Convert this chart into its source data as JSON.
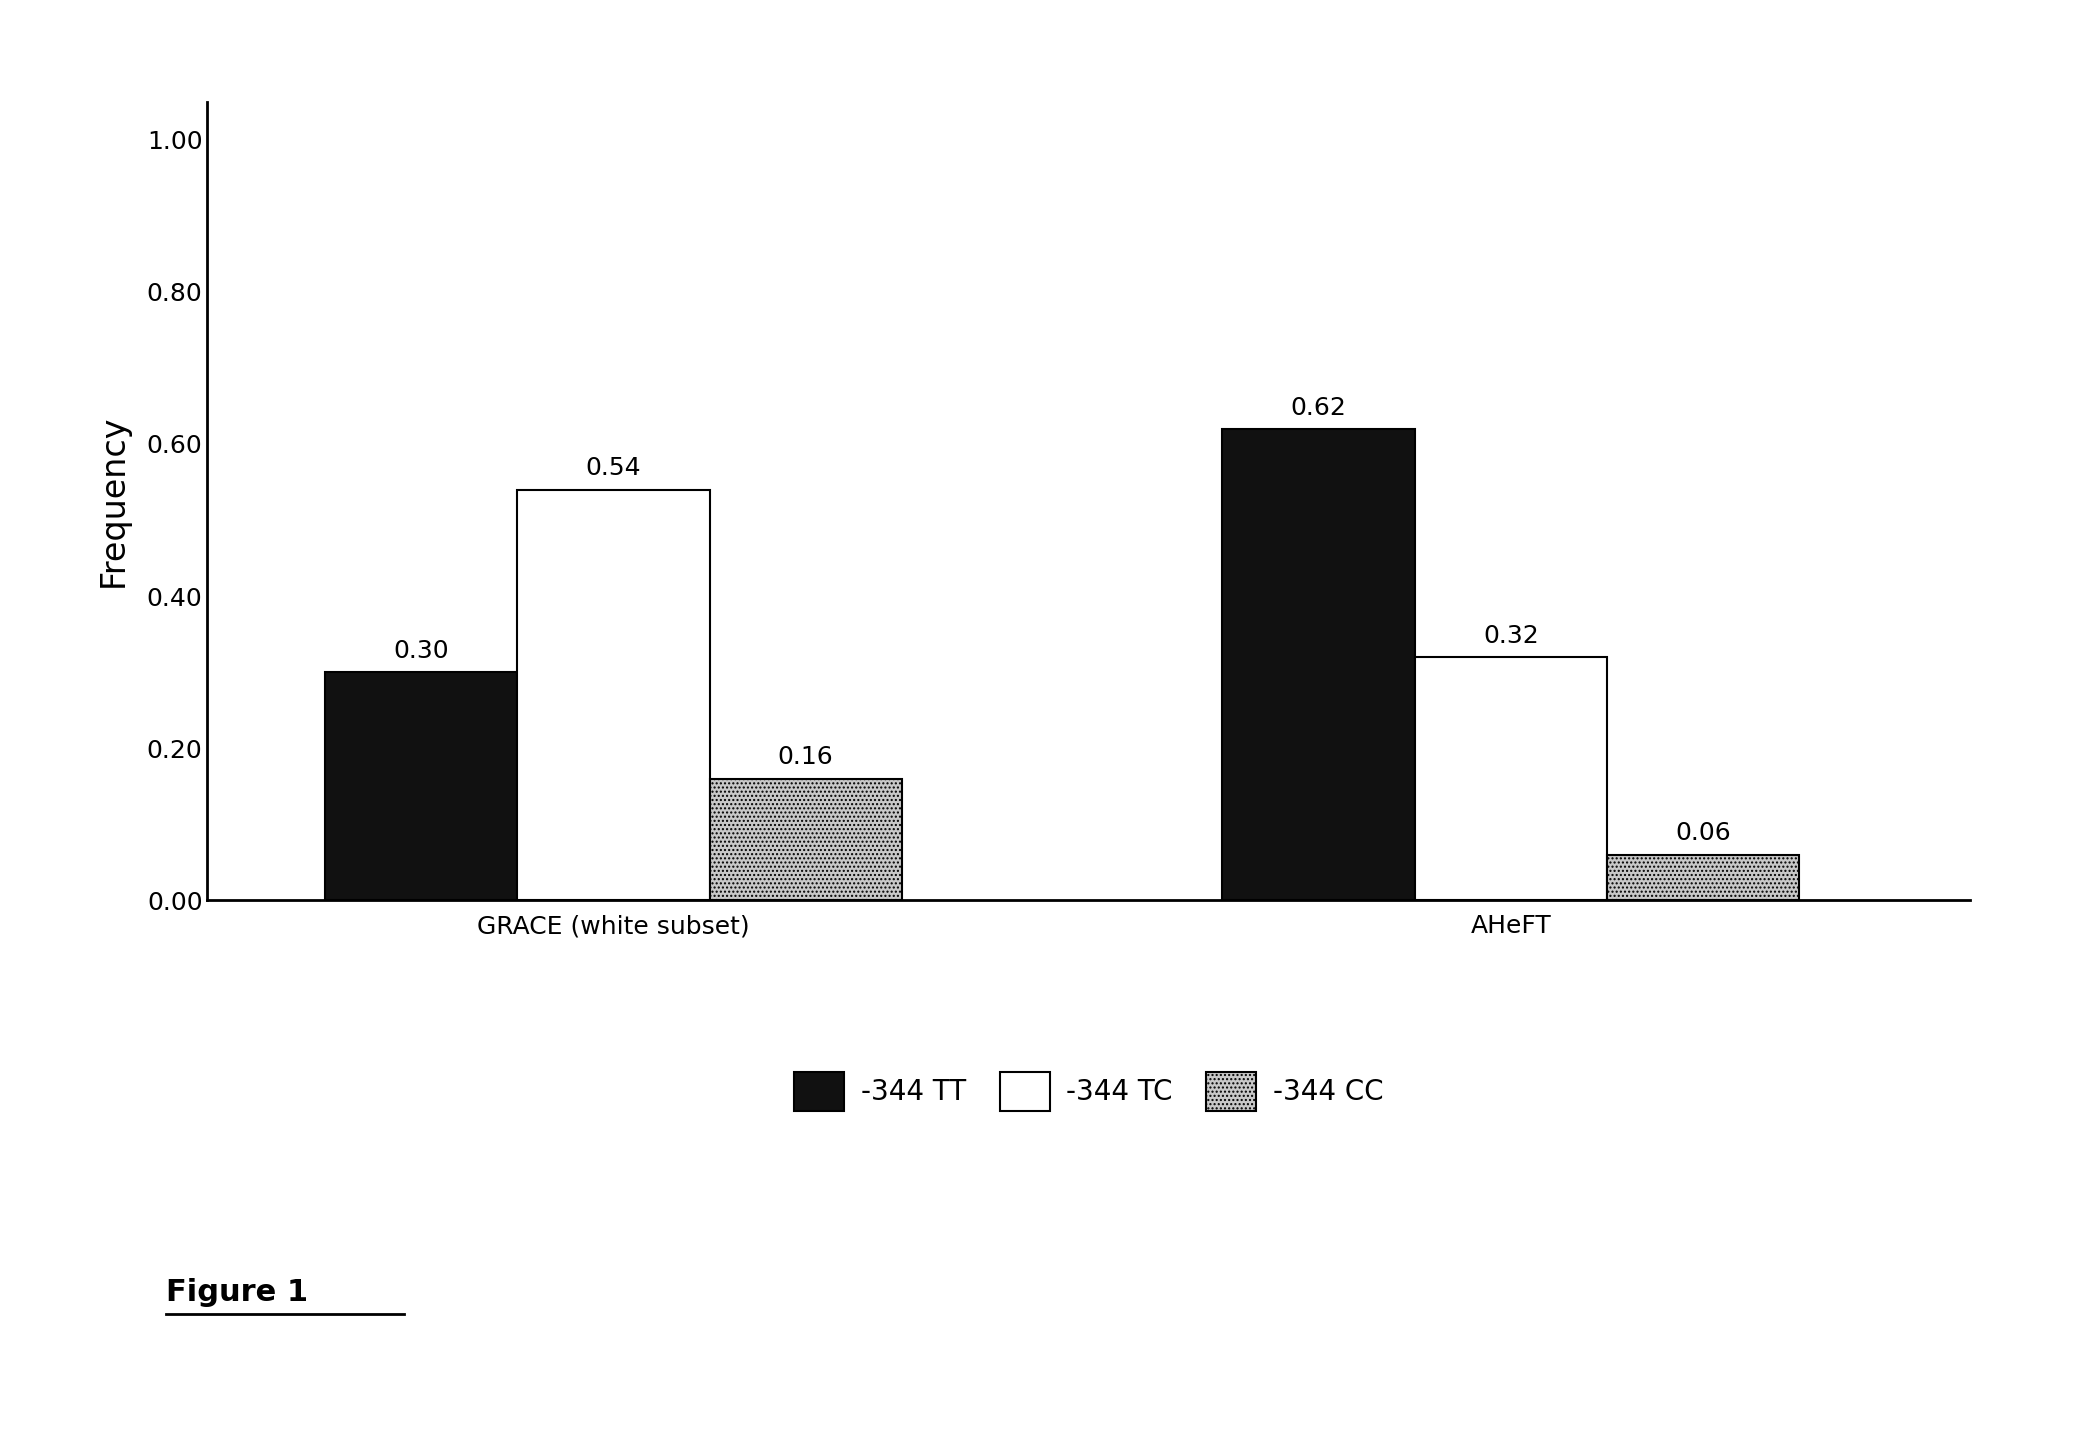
{
  "groups": [
    "GRACE (white subset)",
    "AHeFT"
  ],
  "series": [
    "-344 TT",
    "-344 TC",
    "-344 CC"
  ],
  "values": {
    "GRACE (white subset)": [
      0.3,
      0.54,
      0.16
    ],
    "AHeFT": [
      0.62,
      0.32,
      0.06
    ]
  },
  "bar_colors": [
    "#111111",
    "#ffffff",
    "#c8c8c8"
  ],
  "bar_edgecolors": [
    "#000000",
    "#000000",
    "#000000"
  ],
  "bar_hatches": [
    null,
    null,
    "...."
  ],
  "ylabel": "Frequency",
  "ylim": [
    0.0,
    1.05
  ],
  "yticks": [
    0.0,
    0.2,
    0.4,
    0.6,
    0.8,
    1.0
  ],
  "ytick_labels": [
    "0.00",
    "0.20",
    "0.40",
    "0.60",
    "0.80",
    "1.00"
  ],
  "bar_width": 0.18,
  "label_fontsize": 20,
  "tick_fontsize": 18,
  "value_fontsize": 18,
  "legend_fontsize": 20,
  "figure_caption": "Figure 1",
  "caption_fontsize": 22,
  "background_color": "#ffffff",
  "group_centers": [
    0.38,
    1.22
  ],
  "xlim": [
    0.0,
    1.65
  ]
}
